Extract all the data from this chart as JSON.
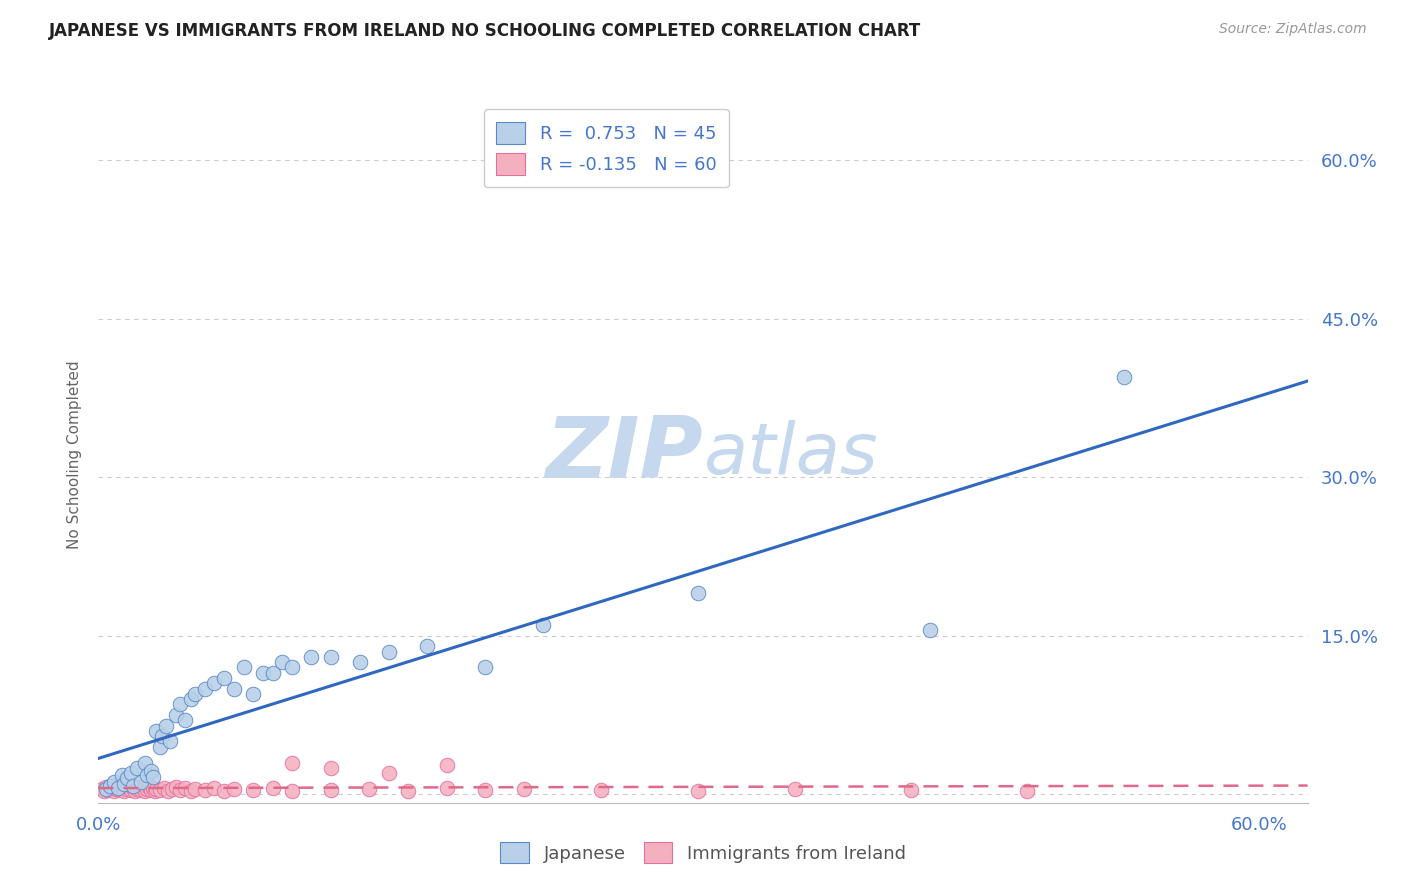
{
  "title": "JAPANESE VS IMMIGRANTS FROM IRELAND NO SCHOOLING COMPLETED CORRELATION CHART",
  "source": "Source: ZipAtlas.com",
  "ylabel_label": "No Schooling Completed",
  "xlim": [
    0.0,
    0.625
  ],
  "ylim": [
    -0.008,
    0.65
  ],
  "x_tick_positions": [
    0.0,
    0.1,
    0.2,
    0.3,
    0.4,
    0.5,
    0.6
  ],
  "x_tick_labels": [
    "0.0%",
    "",
    "",
    "",
    "",
    "",
    "60.0%"
  ],
  "y_tick_positions": [
    0.0,
    0.15,
    0.3,
    0.45,
    0.6
  ],
  "y_tick_labels": [
    "",
    "15.0%",
    "30.0%",
    "45.0%",
    "60.0%"
  ],
  "legend1_label": "R =  0.753   N = 45",
  "legend2_label": "R = -0.135   N = 60",
  "legend1_facecolor": "#b8d0e8",
  "legend2_facecolor": "#f5b0c0",
  "trendline1_color": "#3068c0",
  "trendline2_color": "#e06888",
  "scatter1_facecolor": "#b8d0e8",
  "scatter2_facecolor": "#f5b0c0",
  "scatter1_edgecolor": "#5888c8",
  "scatter2_edgecolor": "#e070a0",
  "watermark_zip_color": "#c8d8ec",
  "watermark_atlas_color": "#c8d8ec",
  "background_color": "#ffffff",
  "grid_color": "#cccccc",
  "tick_color": "#4477cc",
  "japanese_x": [
    0.004,
    0.006,
    0.008,
    0.01,
    0.012,
    0.013,
    0.015,
    0.017,
    0.018,
    0.02,
    0.022,
    0.024,
    0.025,
    0.027,
    0.028,
    0.03,
    0.032,
    0.033,
    0.035,
    0.037,
    0.04,
    0.042,
    0.045,
    0.048,
    0.05,
    0.055,
    0.06,
    0.065,
    0.07,
    0.075,
    0.08,
    0.085,
    0.09,
    0.095,
    0.1,
    0.11,
    0.12,
    0.135,
    0.15,
    0.17,
    0.2,
    0.23,
    0.31,
    0.43,
    0.53
  ],
  "japanese_y": [
    0.005,
    0.008,
    0.012,
    0.006,
    0.018,
    0.01,
    0.015,
    0.02,
    0.008,
    0.025,
    0.012,
    0.03,
    0.018,
    0.022,
    0.016,
    0.06,
    0.045,
    0.055,
    0.065,
    0.05,
    0.075,
    0.085,
    0.07,
    0.09,
    0.095,
    0.1,
    0.105,
    0.11,
    0.1,
    0.12,
    0.095,
    0.115,
    0.115,
    0.125,
    0.12,
    0.13,
    0.13,
    0.125,
    0.135,
    0.14,
    0.12,
    0.16,
    0.19,
    0.155,
    0.395
  ],
  "ireland_x": [
    0.002,
    0.003,
    0.004,
    0.005,
    0.006,
    0.007,
    0.008,
    0.009,
    0.01,
    0.011,
    0.012,
    0.013,
    0.014,
    0.015,
    0.016,
    0.017,
    0.018,
    0.019,
    0.02,
    0.021,
    0.022,
    0.023,
    0.024,
    0.025,
    0.026,
    0.027,
    0.028,
    0.029,
    0.03,
    0.032,
    0.034,
    0.036,
    0.038,
    0.04,
    0.042,
    0.045,
    0.048,
    0.05,
    0.055,
    0.06,
    0.065,
    0.07,
    0.08,
    0.09,
    0.1,
    0.12,
    0.14,
    0.16,
    0.18,
    0.2,
    0.1,
    0.12,
    0.15,
    0.18,
    0.22,
    0.26,
    0.31,
    0.36,
    0.42,
    0.48
  ],
  "ireland_y": [
    0.005,
    0.003,
    0.007,
    0.004,
    0.006,
    0.008,
    0.003,
    0.005,
    0.007,
    0.004,
    0.006,
    0.003,
    0.008,
    0.005,
    0.007,
    0.004,
    0.006,
    0.003,
    0.005,
    0.007,
    0.004,
    0.006,
    0.003,
    0.005,
    0.007,
    0.004,
    0.006,
    0.003,
    0.005,
    0.004,
    0.006,
    0.003,
    0.005,
    0.007,
    0.004,
    0.006,
    0.003,
    0.005,
    0.004,
    0.006,
    0.003,
    0.005,
    0.004,
    0.006,
    0.003,
    0.004,
    0.005,
    0.003,
    0.006,
    0.004,
    0.03,
    0.025,
    0.02,
    0.028,
    0.005,
    0.004,
    0.003,
    0.005,
    0.004,
    0.003
  ]
}
